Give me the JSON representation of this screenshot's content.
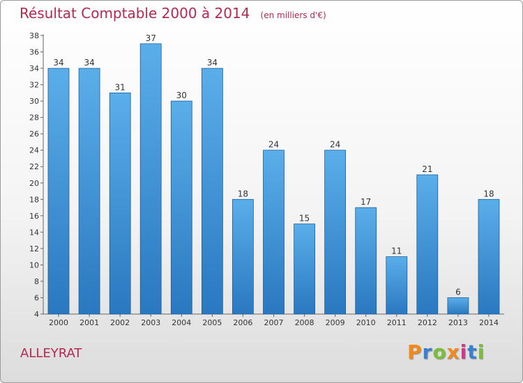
{
  "chart_data": {
    "type": "bar",
    "title": "Résultat Comptable 2000 à 2014",
    "unit_note": "(en milliers d'€)",
    "categories": [
      "2000",
      "2001",
      "2002",
      "2003",
      "2004",
      "2005",
      "2006",
      "2007",
      "2008",
      "2009",
      "2010",
      "2011",
      "2012",
      "2013",
      "2014"
    ],
    "values": [
      34,
      34,
      31,
      37,
      30,
      34,
      18,
      24,
      15,
      24,
      17,
      11,
      21,
      6,
      18
    ],
    "ylim": [
      4,
      38
    ],
    "yticks": [
      4,
      6,
      8,
      10,
      12,
      14,
      16,
      18,
      20,
      22,
      24,
      26,
      28,
      30,
      32,
      34,
      36,
      38
    ],
    "grid": false,
    "legend": "none",
    "bar_color_top": "#5aaee9",
    "bar_color_bottom": "#2a78c0",
    "bar_edge_color": "#1d5f9e"
  },
  "commune": "ALLEYRAT",
  "brand": "Proxiti",
  "brand_colors": [
    "#f08a1c",
    "#3a7fd0",
    "#7abf3a",
    "#f08a1c",
    "#d0388a",
    "#3a7fd0",
    "#7abf3a"
  ],
  "title_color": "#b5284f"
}
